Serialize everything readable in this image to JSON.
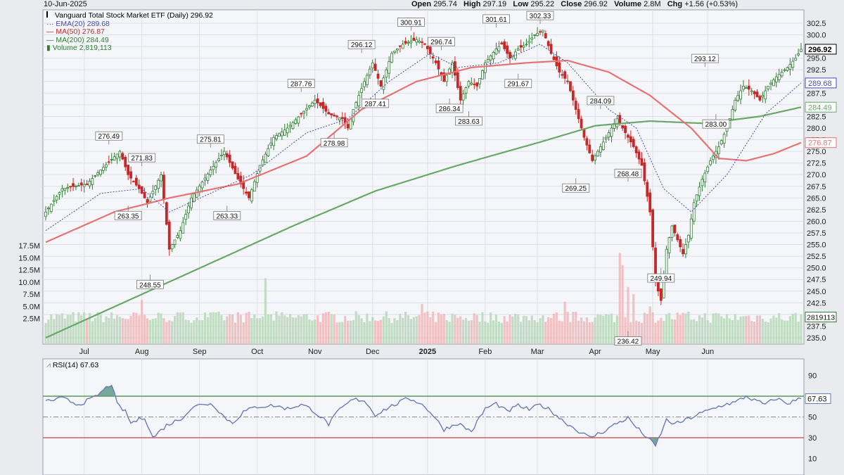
{
  "header": {
    "date": "10-Jun-2025",
    "open_label": "Open",
    "open": "295.74",
    "high_label": "High",
    "high": "297.19",
    "low_label": "Low",
    "low": "295.22",
    "close_label": "Close",
    "close": "296.92",
    "volume_label": "Volume",
    "volume": "2.8M",
    "chg_label": "Chg",
    "chg": "+1.56 (+0.53%)"
  },
  "legend": {
    "title": "Vanguard Total Stock Market ETF (Daily) 296.92",
    "ema": "EMA(20) 289.68",
    "ma50": "MA(50) 276.87",
    "ma200": "MA(200) 284.49",
    "volume": "Volume 2,819,113"
  },
  "rsi_legend": "RSI(14) 67.63",
  "colors": {
    "up": "#2e7d32",
    "down": "#c62828",
    "ema": "#4a4ab3",
    "ma50": "#e57373",
    "ma200": "#6aa86a",
    "rsi": "#6b7bb5",
    "panel_bg": "#f5f6fa"
  },
  "chart_data": [
    {
      "type": "candlestick",
      "title": "Vanguard Total Stock Market ETF (Daily)",
      "x_months": [
        "Jul",
        "Aug",
        "Sep",
        "Oct",
        "Nov",
        "Dec",
        "2025",
        "Feb",
        "Mar",
        "Apr",
        "May",
        "Jun"
      ],
      "y_ticks": [
        "302.5",
        "300.0",
        "297.5",
        "295.0",
        "292.5",
        "290.0",
        "287.5",
        "285.0",
        "282.5",
        "280.0",
        "277.5",
        "275.0",
        "272.5",
        "270.0",
        "267.5",
        "265.0",
        "262.5",
        "260.0",
        "257.5",
        "255.0",
        "252.5",
        "250.0",
        "247.5",
        "245.0",
        "242.5",
        "240.0",
        "237.5",
        "235.0"
      ],
      "ylim": [
        234.5,
        304.5
      ],
      "anchors": [
        {
          "t": 0,
          "p": 262
        },
        {
          "t": 6,
          "p": 267
        },
        {
          "t": 15,
          "p": 268
        },
        {
          "t": 20,
          "p": 271
        },
        {
          "t": 27,
          "p": 275
        },
        {
          "t": 30,
          "p": 270
        },
        {
          "t": 34,
          "p": 267
        },
        {
          "t": 37,
          "p": 264
        },
        {
          "t": 42,
          "p": 270
        },
        {
          "t": 45,
          "p": 254
        },
        {
          "t": 49,
          "p": 258
        },
        {
          "t": 53,
          "p": 265
        },
        {
          "t": 60,
          "p": 271
        },
        {
          "t": 65,
          "p": 275
        },
        {
          "t": 70,
          "p": 269
        },
        {
          "t": 74,
          "p": 265
        },
        {
          "t": 78,
          "p": 272
        },
        {
          "t": 83,
          "p": 278
        },
        {
          "t": 88,
          "p": 280
        },
        {
          "t": 93,
          "p": 283
        },
        {
          "t": 98,
          "p": 286
        },
        {
          "t": 103,
          "p": 283
        },
        {
          "t": 108,
          "p": 282
        },
        {
          "t": 110,
          "p": 280
        },
        {
          "t": 112,
          "p": 284
        },
        {
          "t": 116,
          "p": 290
        },
        {
          "t": 119,
          "p": 294
        },
        {
          "t": 122,
          "p": 289
        },
        {
          "t": 126,
          "p": 296
        },
        {
          "t": 130,
          "p": 298
        },
        {
          "t": 135,
          "p": 299
        },
        {
          "t": 138,
          "p": 298
        },
        {
          "t": 142,
          "p": 294
        },
        {
          "t": 145,
          "p": 290
        },
        {
          "t": 148,
          "p": 294
        },
        {
          "t": 151,
          "p": 286
        },
        {
          "t": 154,
          "p": 290
        },
        {
          "t": 157,
          "p": 289
        },
        {
          "t": 160,
          "p": 294
        },
        {
          "t": 164,
          "p": 297
        },
        {
          "t": 166,
          "p": 298
        },
        {
          "t": 169,
          "p": 295
        },
        {
          "t": 172,
          "p": 297
        },
        {
          "t": 175,
          "p": 298
        },
        {
          "t": 178,
          "p": 300
        },
        {
          "t": 181,
          "p": 301
        },
        {
          "t": 184,
          "p": 296
        },
        {
          "t": 187,
          "p": 292
        },
        {
          "t": 190,
          "p": 290
        },
        {
          "t": 193,
          "p": 284
        },
        {
          "t": 196,
          "p": 278
        },
        {
          "t": 199,
          "p": 273
        },
        {
          "t": 202,
          "p": 276
        },
        {
          "t": 205,
          "p": 279
        },
        {
          "t": 208,
          "p": 282
        },
        {
          "t": 211,
          "p": 279
        },
        {
          "t": 214,
          "p": 276
        },
        {
          "t": 217,
          "p": 272
        },
        {
          "t": 220,
          "p": 262
        },
        {
          "t": 222,
          "p": 247
        },
        {
          "t": 224,
          "p": 243
        },
        {
          "t": 226,
          "p": 254
        },
        {
          "t": 228,
          "p": 259
        },
        {
          "t": 230,
          "p": 256
        },
        {
          "t": 232,
          "p": 253
        },
        {
          "t": 234,
          "p": 257
        },
        {
          "t": 236,
          "p": 264
        },
        {
          "t": 239,
          "p": 269
        },
        {
          "t": 242,
          "p": 273
        },
        {
          "t": 245,
          "p": 276
        },
        {
          "t": 248,
          "p": 280
        },
        {
          "t": 251,
          "p": 286
        },
        {
          "t": 254,
          "p": 289
        },
        {
          "t": 257,
          "p": 288
        },
        {
          "t": 260,
          "p": 286
        },
        {
          "t": 263,
          "p": 289
        },
        {
          "t": 266,
          "p": 291
        },
        {
          "t": 270,
          "p": 293
        },
        {
          "t": 273,
          "p": 295
        },
        {
          "t": 275,
          "p": 296.92
        }
      ],
      "ema20": [
        {
          "t": 0,
          "p": 258
        },
        {
          "t": 20,
          "p": 266
        },
        {
          "t": 35,
          "p": 267
        },
        {
          "t": 45,
          "p": 262
        },
        {
          "t": 60,
          "p": 266
        },
        {
          "t": 75,
          "p": 270
        },
        {
          "t": 95,
          "p": 279
        },
        {
          "t": 110,
          "p": 282
        },
        {
          "t": 125,
          "p": 290
        },
        {
          "t": 140,
          "p": 296
        },
        {
          "t": 150,
          "p": 293
        },
        {
          "t": 165,
          "p": 294
        },
        {
          "t": 180,
          "p": 298
        },
        {
          "t": 190,
          "p": 294
        },
        {
          "t": 205,
          "p": 284
        },
        {
          "t": 215,
          "p": 280
        },
        {
          "t": 225,
          "p": 267
        },
        {
          "t": 235,
          "p": 262
        },
        {
          "t": 248,
          "p": 270
        },
        {
          "t": 262,
          "p": 283
        },
        {
          "t": 275,
          "p": 289.68
        }
      ],
      "ma50": [
        {
          "t": 0,
          "p": 255.5
        },
        {
          "t": 25,
          "p": 262
        },
        {
          "t": 45,
          "p": 265
        },
        {
          "t": 70,
          "p": 268
        },
        {
          "t": 95,
          "p": 274
        },
        {
          "t": 115,
          "p": 284
        },
        {
          "t": 135,
          "p": 290
        },
        {
          "t": 155,
          "p": 293
        },
        {
          "t": 175,
          "p": 294
        },
        {
          "t": 190,
          "p": 294.5
        },
        {
          "t": 205,
          "p": 292
        },
        {
          "t": 220,
          "p": 287
        },
        {
          "t": 235,
          "p": 280
        },
        {
          "t": 245,
          "p": 273.5
        },
        {
          "t": 255,
          "p": 273
        },
        {
          "t": 265,
          "p": 274.5
        },
        {
          "t": 275,
          "p": 276.87
        }
      ],
      "ma200": [
        {
          "t": 0,
          "p": 235
        },
        {
          "t": 30,
          "p": 243
        },
        {
          "t": 60,
          "p": 251
        },
        {
          "t": 90,
          "p": 259
        },
        {
          "t": 120,
          "p": 266.5
        },
        {
          "t": 150,
          "p": 272
        },
        {
          "t": 180,
          "p": 277
        },
        {
          "t": 200,
          "p": 280.5
        },
        {
          "t": 220,
          "p": 281.5
        },
        {
          "t": 240,
          "p": 281
        },
        {
          "t": 260,
          "p": 282.5
        },
        {
          "t": 275,
          "p": 284.49
        }
      ],
      "markers": [
        {
          "t": 23,
          "p": 276.49,
          "label": "276.49",
          "pos": "above"
        },
        {
          "t": 30,
          "p": 263.35,
          "label": "263.35",
          "pos": "below"
        },
        {
          "t": 35,
          "p": 271.83,
          "label": "271.83",
          "pos": "above"
        },
        {
          "t": 38,
          "p": 248.55,
          "label": "248.55",
          "pos": "below"
        },
        {
          "t": 60,
          "p": 275.81,
          "label": "275.81",
          "pos": "above"
        },
        {
          "t": 66,
          "p": 263.33,
          "label": "263.33",
          "pos": "below"
        },
        {
          "t": 93,
          "p": 287.76,
          "label": "287.76",
          "pos": "above"
        },
        {
          "t": 105,
          "p": 278.98,
          "label": "278.98",
          "pos": "below"
        },
        {
          "t": 115,
          "p": 296.12,
          "label": "296.12",
          "pos": "above"
        },
        {
          "t": 120,
          "p": 287.41,
          "label": "287.41",
          "pos": "below"
        },
        {
          "t": 133,
          "p": 300.91,
          "label": "300.91",
          "pos": "above"
        },
        {
          "t": 144,
          "p": 296.74,
          "label": "296.74",
          "pos": "above"
        },
        {
          "t": 147,
          "p": 286.34,
          "label": "286.34",
          "pos": "below"
        },
        {
          "t": 154,
          "p": 283.63,
          "label": "283.63",
          "pos": "below"
        },
        {
          "t": 164,
          "p": 301.61,
          "label": "301.61",
          "pos": "above"
        },
        {
          "t": 172,
          "p": 291.67,
          "label": "291.67",
          "pos": "below"
        },
        {
          "t": 180,
          "p": 302.33,
          "label": "302.33",
          "pos": "above"
        },
        {
          "t": 202,
          "p": 284.09,
          "label": "284.09",
          "pos": "above"
        },
        {
          "t": 193,
          "p": 269.25,
          "label": "269.25",
          "pos": "below"
        },
        {
          "t": 212,
          "p": 268.48,
          "label": "268.48",
          "pos": "above"
        },
        {
          "t": 224,
          "p": 249.94,
          "label": "249.94",
          "pos": "below"
        },
        {
          "t": 212,
          "p": 236.42,
          "label": "236.42",
          "pos": "below"
        },
        {
          "t": 240,
          "p": 293.12,
          "label": "293.12",
          "pos": "above"
        },
        {
          "t": 244,
          "p": 283.0,
          "label": "283.00",
          "pos": "below"
        }
      ],
      "last_tags": [
        {
          "label": "296.92",
          "color": "#000000",
          "p": 296.92
        },
        {
          "label": "289.68",
          "color": "#4a4ab3",
          "p": 289.68
        },
        {
          "label": "284.49",
          "color": "#6aa86a",
          "p": 284.49
        },
        {
          "label": "276.87",
          "color": "#e57373",
          "p": 276.87
        }
      ]
    },
    {
      "type": "bar",
      "title": "Volume",
      "y_ticks": [
        "17.5M",
        "15.0M",
        "12.5M",
        "10.0M",
        "7.5M",
        "5.0M",
        "2.5M"
      ],
      "ylim_millions": [
        0,
        18
      ],
      "last_value": "2819113",
      "spikes": [
        {
          "t": 35,
          "v": 6.3
        },
        {
          "t": 80,
          "v": 10.8
        },
        {
          "t": 137,
          "v": 5.5
        },
        {
          "t": 189,
          "v": 6.0
        },
        {
          "t": 209,
          "v": 16.0
        },
        {
          "t": 210,
          "v": 13.5
        },
        {
          "t": 212,
          "v": 9.0
        },
        {
          "t": 214,
          "v": 7.5
        },
        {
          "t": 220,
          "v": 5.0
        }
      ]
    },
    {
      "type": "line",
      "title": "RSI(14)",
      "y_ticks": [
        "90",
        "70",
        "50",
        "30",
        "10"
      ],
      "ylim": [
        0,
        100
      ],
      "last_value": "67.63",
      "levels": [
        70,
        50,
        30
      ],
      "anchors": [
        {
          "t": 0,
          "v": 65
        },
        {
          "t": 6,
          "v": 68
        },
        {
          "t": 12,
          "v": 62
        },
        {
          "t": 18,
          "v": 69
        },
        {
          "t": 22,
          "v": 78
        },
        {
          "t": 24,
          "v": 82
        },
        {
          "t": 26,
          "v": 62
        },
        {
          "t": 29,
          "v": 55
        },
        {
          "t": 31,
          "v": 44
        },
        {
          "t": 36,
          "v": 50
        },
        {
          "t": 39,
          "v": 30
        },
        {
          "t": 44,
          "v": 42
        },
        {
          "t": 49,
          "v": 48
        },
        {
          "t": 53,
          "v": 58
        },
        {
          "t": 57,
          "v": 63
        },
        {
          "t": 61,
          "v": 62
        },
        {
          "t": 65,
          "v": 50
        },
        {
          "t": 68,
          "v": 44
        },
        {
          "t": 72,
          "v": 55
        },
        {
          "t": 77,
          "v": 60
        },
        {
          "t": 83,
          "v": 61
        },
        {
          "t": 88,
          "v": 58
        },
        {
          "t": 93,
          "v": 62
        },
        {
          "t": 97,
          "v": 57
        },
        {
          "t": 101,
          "v": 48
        },
        {
          "t": 103,
          "v": 43
        },
        {
          "t": 107,
          "v": 57
        },
        {
          "t": 112,
          "v": 67
        },
        {
          "t": 116,
          "v": 66
        },
        {
          "t": 120,
          "v": 52
        },
        {
          "t": 124,
          "v": 58
        },
        {
          "t": 128,
          "v": 63
        },
        {
          "t": 132,
          "v": 68
        },
        {
          "t": 136,
          "v": 64
        },
        {
          "t": 140,
          "v": 55
        },
        {
          "t": 145,
          "v": 38
        },
        {
          "t": 150,
          "v": 44
        },
        {
          "t": 155,
          "v": 36
        },
        {
          "t": 160,
          "v": 58
        },
        {
          "t": 164,
          "v": 63
        },
        {
          "t": 168,
          "v": 55
        },
        {
          "t": 172,
          "v": 61
        },
        {
          "t": 176,
          "v": 57
        },
        {
          "t": 180,
          "v": 62
        },
        {
          "t": 184,
          "v": 56
        },
        {
          "t": 188,
          "v": 47
        },
        {
          "t": 193,
          "v": 38
        },
        {
          "t": 198,
          "v": 30
        },
        {
          "t": 203,
          "v": 36
        },
        {
          "t": 208,
          "v": 44
        },
        {
          "t": 212,
          "v": 49
        },
        {
          "t": 215,
          "v": 40
        },
        {
          "t": 219,
          "v": 30
        },
        {
          "t": 222,
          "v": 22
        },
        {
          "t": 226,
          "v": 47
        },
        {
          "t": 229,
          "v": 43
        },
        {
          "t": 233,
          "v": 47
        },
        {
          "t": 238,
          "v": 53
        },
        {
          "t": 243,
          "v": 58
        },
        {
          "t": 247,
          "v": 62
        },
        {
          "t": 251,
          "v": 64
        },
        {
          "t": 255,
          "v": 70
        },
        {
          "t": 258,
          "v": 66
        },
        {
          "t": 262,
          "v": 62
        },
        {
          "t": 266,
          "v": 68
        },
        {
          "t": 270,
          "v": 63
        },
        {
          "t": 273,
          "v": 66
        },
        {
          "t": 275,
          "v": 67.63
        }
      ]
    }
  ]
}
